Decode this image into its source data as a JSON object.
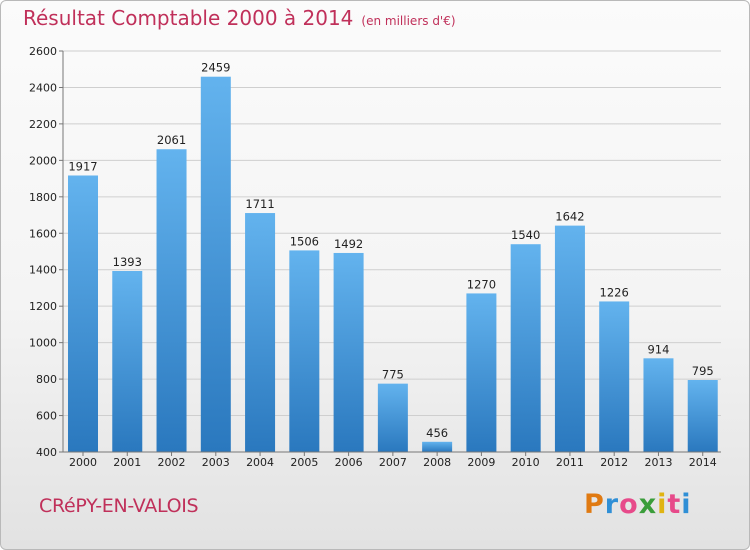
{
  "title": {
    "main": "Résultat Comptable 2000 à 2014",
    "unit": "(en milliers d'€)"
  },
  "commune": "CRéPY-EN-VALOIS",
  "logo": {
    "text": "Proxiti",
    "letter_colors": [
      "#e07a12",
      "#2f8fd6",
      "#e74a8a",
      "#3a9d3a",
      "#e0b412",
      "#e74a8a",
      "#2f8fd6"
    ]
  },
  "colors": {
    "title": "#c0305a",
    "bar_light": "#63b3ee",
    "bar_dark": "#2a78be",
    "grid": "#cfcfcf"
  },
  "chart_data": {
    "type": "bar",
    "title": "Résultat Comptable 2000 à 2014",
    "subtitle": "(en milliers d'€)",
    "categories": [
      "2000",
      "2001",
      "2002",
      "2003",
      "2004",
      "2005",
      "2006",
      "2007",
      "2008",
      "2009",
      "2010",
      "2011",
      "2012",
      "2013",
      "2014"
    ],
    "values": [
      1917,
      1393,
      2061,
      2459,
      1711,
      1506,
      1492,
      775,
      456,
      1270,
      1540,
      1642,
      1226,
      914,
      795
    ],
    "ylim": [
      400,
      2600
    ],
    "yticks": [
      400,
      600,
      800,
      1000,
      1200,
      1400,
      1600,
      1800,
      2000,
      2200,
      2400,
      2600
    ],
    "grid": true,
    "xlabel": "",
    "ylabel": ""
  }
}
